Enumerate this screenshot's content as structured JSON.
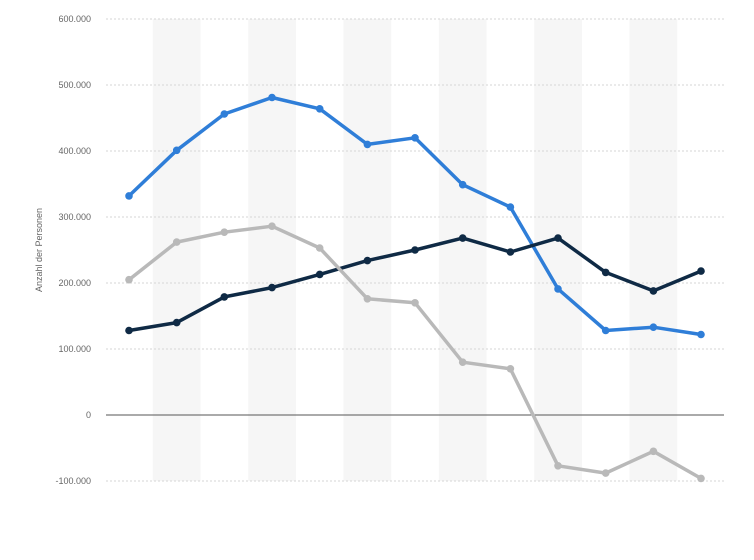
{
  "chart_data": {
    "type": "line",
    "title": "",
    "xlabel": "",
    "ylabel": "Anzahl der Personen",
    "ylim": [
      -100000,
      600000
    ],
    "yticks": [
      -100000,
      0,
      100000,
      200000,
      300000,
      400000,
      500000,
      600000
    ],
    "ytick_labels": [
      "-100.000",
      "0",
      "100.000",
      "200.000",
      "300.000",
      "400.000",
      "500.000",
      "600.000"
    ],
    "grid": true,
    "legend": "none",
    "x_count": 13,
    "series": [
      {
        "color": "#2f7ed8",
        "values": [
          332000,
          401000,
          456000,
          481000,
          464000,
          410000,
          420000,
          349000,
          315000,
          191000,
          128000,
          133000,
          122000
        ]
      },
      {
        "color": "#0f2a45",
        "values": [
          128000,
          140000,
          179000,
          193000,
          213000,
          234000,
          250000,
          268000,
          247000,
          268000,
          216000,
          188000,
          218000
        ]
      },
      {
        "color": "#b9b9b9",
        "values": [
          205000,
          262000,
          277000,
          286000,
          253000,
          176000,
          170000,
          80000,
          70000,
          -77000,
          -88000,
          -55000,
          -96000
        ]
      }
    ]
  }
}
